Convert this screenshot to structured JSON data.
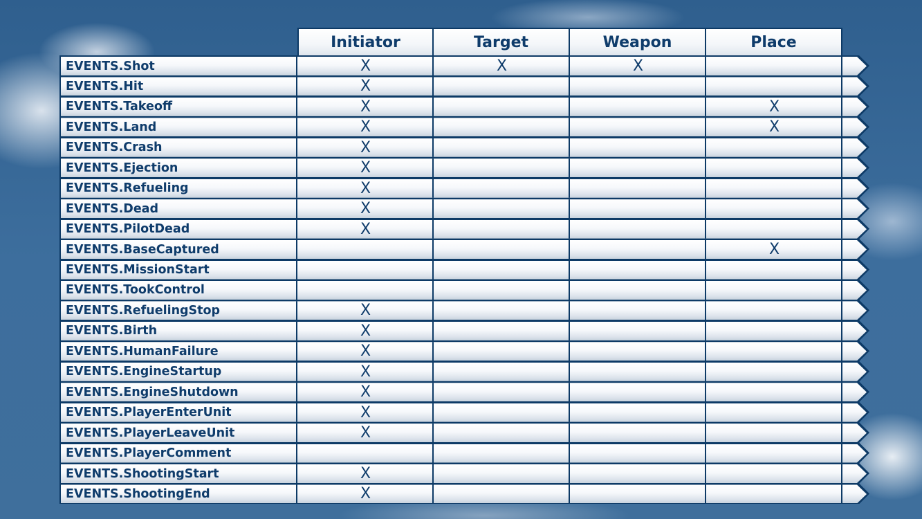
{
  "header": {
    "columns": [
      "Initiator",
      "Target",
      "Weapon",
      "Place"
    ]
  },
  "mark_symbol": "X",
  "colors": {
    "border": "#0d3a66",
    "text": "#0f3c6b"
  },
  "rows": [
    {
      "event": "EVENTS.Shot",
      "marks": [
        "X",
        "X",
        "X",
        ""
      ]
    },
    {
      "event": "EVENTS.Hit",
      "marks": [
        "X",
        "",
        "",
        ""
      ]
    },
    {
      "event": "EVENTS.Takeoff",
      "marks": [
        "X",
        "",
        "",
        "X"
      ]
    },
    {
      "event": "EVENTS.Land",
      "marks": [
        "X",
        "",
        "",
        "X"
      ]
    },
    {
      "event": "EVENTS.Crash",
      "marks": [
        "X",
        "",
        "",
        ""
      ]
    },
    {
      "event": "EVENTS.Ejection",
      "marks": [
        "X",
        "",
        "",
        ""
      ]
    },
    {
      "event": "EVENTS.Refueling",
      "marks": [
        "X",
        "",
        "",
        ""
      ]
    },
    {
      "event": "EVENTS.Dead",
      "marks": [
        "X",
        "",
        "",
        ""
      ]
    },
    {
      "event": "EVENTS.PilotDead",
      "marks": [
        "X",
        "",
        "",
        ""
      ]
    },
    {
      "event": "EVENTS.BaseCaptured",
      "marks": [
        "",
        "",
        "",
        "X"
      ]
    },
    {
      "event": "EVENTS.MissionStart",
      "marks": [
        "",
        "",
        "",
        ""
      ]
    },
    {
      "event": "EVENTS.TookControl",
      "marks": [
        "",
        "",
        "",
        ""
      ]
    },
    {
      "event": "EVENTS.RefuelingStop",
      "marks": [
        "X",
        "",
        "",
        ""
      ]
    },
    {
      "event": "EVENTS.Birth",
      "marks": [
        "X",
        "",
        "",
        ""
      ]
    },
    {
      "event": "EVENTS.HumanFailure",
      "marks": [
        "X",
        "",
        "",
        ""
      ]
    },
    {
      "event": "EVENTS.EngineStartup",
      "marks": [
        "X",
        "",
        "",
        ""
      ]
    },
    {
      "event": "EVENTS.EngineShutdown",
      "marks": [
        "X",
        "",
        "",
        ""
      ]
    },
    {
      "event": "EVENTS.PlayerEnterUnit",
      "marks": [
        "X",
        "",
        "",
        ""
      ]
    },
    {
      "event": "EVENTS.PlayerLeaveUnit",
      "marks": [
        "X",
        "",
        "",
        ""
      ]
    },
    {
      "event": "EVENTS.PlayerComment",
      "marks": [
        "",
        "",
        "",
        ""
      ]
    },
    {
      "event": "EVENTS.ShootingStart",
      "marks": [
        "X",
        "",
        "",
        ""
      ]
    },
    {
      "event": "EVENTS.ShootingEnd",
      "marks": [
        "X",
        "",
        "",
        ""
      ]
    }
  ]
}
